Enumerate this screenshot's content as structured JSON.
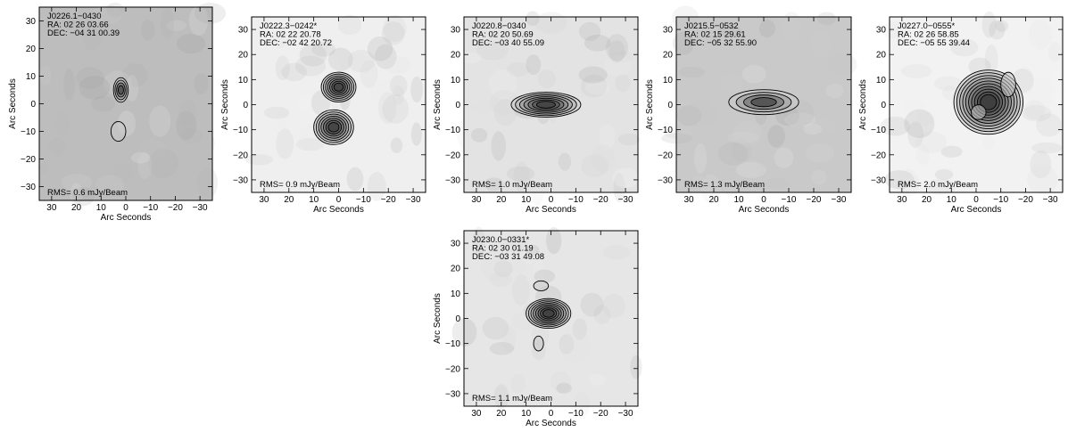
{
  "axes": {
    "xlabel": "Arc Seconds",
    "ylabel": "Arc Seconds",
    "xticks": [
      "30",
      "20",
      "10",
      "0",
      "−10",
      "−20",
      "−30"
    ],
    "yticks": [
      "30",
      "20",
      "10",
      "0",
      "−10",
      "−20",
      "−30"
    ],
    "range": [
      -35,
      35
    ],
    "x_reversed": true
  },
  "panels": [
    {
      "name": "J0226.1−0430",
      "ra": "RA: 02 26 03.66",
      "dec": "DEC: −04 31 00.39",
      "rms": "RMS=  0.6 mJy/Beam",
      "sources": [
        {
          "x": 2,
          "y": 5,
          "levels": 4,
          "sx": 3,
          "sy": 5
        },
        {
          "x": 3,
          "y": -10,
          "levels": 1,
          "sx": 3,
          "sy": 4
        }
      ]
    },
    {
      "name": "J0222.3−0242*",
      "ra": "RA: 02 22 20.78",
      "dec": "DEC: −02 42 20.72",
      "rms": "RMS=  0.9 mJy/Beam",
      "sources": [
        {
          "x": 0,
          "y": 7,
          "levels": 7,
          "sx": 7,
          "sy": 6
        },
        {
          "x": 2,
          "y": -9,
          "levels": 7,
          "sx": 8,
          "sy": 7
        }
      ]
    },
    {
      "name": "J0220.8−0340",
      "ra": "RA: 02 20 50.69",
      "dec": "DEC: −03 40 55.09",
      "rms": "RMS=  1.0 mJy/Beam",
      "sources": [
        {
          "x": 2,
          "y": 0,
          "levels": 7,
          "sx": 14,
          "sy": 5
        }
      ]
    },
    {
      "name": "J0215.5−0532",
      "ra": "RA: 02 15 29.61",
      "dec": "DEC: −05 32 55.90",
      "rms": "RMS=  1.3 mJy/Beam",
      "sources": [
        {
          "x": 0,
          "y": 1,
          "levels": 4,
          "sx": 14,
          "sy": 5
        }
      ]
    },
    {
      "name": "J0227.0−0555*",
      "ra": "RA: 02 26 58.85",
      "dec": "DEC: −05 55 39.44",
      "rms": "RMS=  2.0 mJy/Beam",
      "sources": [
        {
          "x": -5,
          "y": 1,
          "levels": 10,
          "sx": 14,
          "sy": 13
        },
        {
          "x": -13,
          "y": 8,
          "levels": 1,
          "sx": 3,
          "sy": 5
        },
        {
          "x": -1,
          "y": -3,
          "levels": 1,
          "sx": 3,
          "sy": 3
        }
      ]
    },
    {
      "name": "J0230.0−0331*",
      "ra": "RA: 02 30 01.19",
      "dec": "DEC: −03 31 49.08",
      "rms": "RMS=  1.1 mJy/Beam",
      "sources": [
        {
          "x": 1,
          "y": 2,
          "levels": 8,
          "sx": 9,
          "sy": 6
        },
        {
          "x": 4,
          "y": 13,
          "levels": 1,
          "sx": 3,
          "sy": 2
        },
        {
          "x": 5,
          "y": -10,
          "levels": 1,
          "sx": 2,
          "sy": 3
        }
      ]
    }
  ]
}
